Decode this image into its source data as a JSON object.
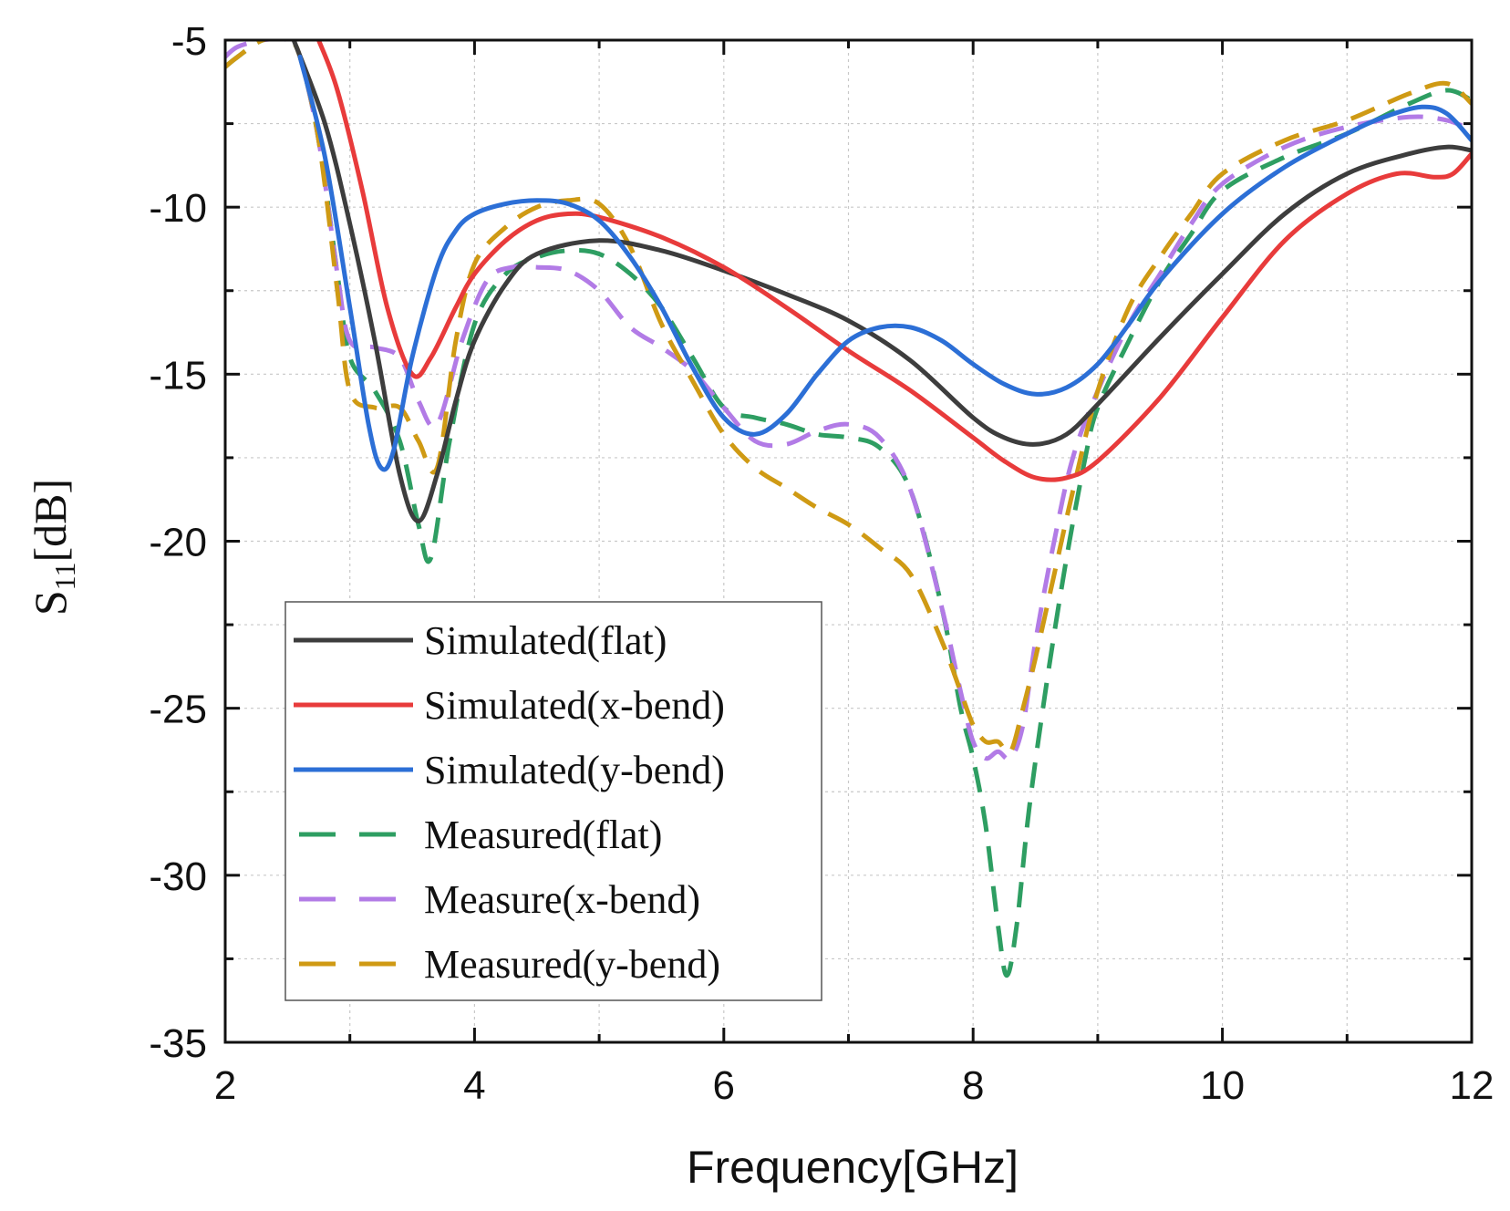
{
  "chart_data": {
    "type": "line",
    "title": "",
    "xlabel": "Frequency[GHz]",
    "ylabel": {
      "main": "S",
      "sub": "11",
      "unit": "[dB]"
    },
    "xlim": [
      2,
      12
    ],
    "ylim": [
      -35,
      -5
    ],
    "xticks": [
      2,
      4,
      6,
      8,
      10,
      12
    ],
    "yticks": [
      -5,
      -10,
      -15,
      -20,
      -25,
      -30,
      -35
    ],
    "grid": true,
    "legend_position": "lower-left",
    "series": [
      {
        "name": "Simulated(flat)",
        "color": "#3d3d3d",
        "style": "solid",
        "x": [
          2.55,
          2.8,
          3.0,
          3.2,
          3.4,
          3.55,
          3.7,
          3.85,
          4.0,
          4.25,
          4.5,
          5.0,
          5.5,
          6.0,
          6.5,
          7.0,
          7.5,
          8.0,
          8.25,
          8.5,
          8.75,
          9.0,
          9.5,
          10.0,
          10.5,
          11.0,
          11.5,
          11.8,
          12.0
        ],
        "y": [
          -5.0,
          -7.5,
          -10.5,
          -14.0,
          -18.0,
          -19.4,
          -18.0,
          -15.8,
          -14.0,
          -12.3,
          -11.4,
          -11.0,
          -11.3,
          -11.9,
          -12.6,
          -13.4,
          -14.6,
          -16.3,
          -16.9,
          -17.1,
          -16.8,
          -15.9,
          -13.9,
          -12.0,
          -10.2,
          -9.0,
          -8.4,
          -8.2,
          -8.3
        ]
      },
      {
        "name": "Simulated(x-bend)",
        "color": "#e83b3b",
        "style": "solid",
        "x": [
          2.75,
          2.9,
          3.1,
          3.3,
          3.5,
          3.65,
          3.85,
          4.0,
          4.25,
          4.5,
          4.75,
          5.0,
          5.5,
          6.0,
          6.5,
          7.0,
          7.5,
          8.0,
          8.25,
          8.5,
          8.75,
          9.0,
          9.5,
          10.0,
          10.5,
          11.0,
          11.4,
          11.7,
          11.85,
          12.0
        ],
        "y": [
          -5.0,
          -6.5,
          -9.5,
          -13.0,
          -15.0,
          -14.5,
          -13.0,
          -12.0,
          -11.0,
          -10.4,
          -10.2,
          -10.3,
          -10.9,
          -11.8,
          -13.0,
          -14.3,
          -15.5,
          -16.9,
          -17.6,
          -18.1,
          -18.1,
          -17.6,
          -15.7,
          -13.3,
          -11.0,
          -9.6,
          -9.0,
          -9.1,
          -9.0,
          -8.4
        ]
      },
      {
        "name": "Simulated(y-bend)",
        "color": "#2c6fd6",
        "style": "solid",
        "x": [
          2.6,
          2.8,
          3.0,
          3.15,
          3.25,
          3.35,
          3.5,
          3.7,
          3.85,
          4.0,
          4.25,
          4.5,
          4.75,
          5.0,
          5.25,
          5.5,
          5.75,
          6.0,
          6.25,
          6.5,
          6.75,
          7.0,
          7.25,
          7.5,
          7.75,
          8.0,
          8.25,
          8.5,
          8.75,
          9.0,
          9.25,
          9.5,
          10.0,
          10.5,
          11.0,
          11.3,
          11.6,
          11.8,
          12.0
        ],
        "y": [
          -5.5,
          -8.5,
          -13.0,
          -16.5,
          -17.8,
          -17.3,
          -14.5,
          -11.8,
          -10.7,
          -10.2,
          -9.9,
          -9.8,
          -9.9,
          -10.4,
          -11.5,
          -13.0,
          -14.8,
          -16.3,
          -16.8,
          -16.2,
          -15.0,
          -14.0,
          -13.6,
          -13.6,
          -14.0,
          -14.7,
          -15.3,
          -15.6,
          -15.4,
          -14.7,
          -13.5,
          -12.2,
          -10.2,
          -8.8,
          -7.8,
          -7.3,
          -7.0,
          -7.2,
          -8.0
        ]
      },
      {
        "name": "Measured(flat)",
        "color": "#2e9e62",
        "style": "dashed",
        "x": [
          2.0,
          2.1,
          2.3,
          2.5,
          2.6,
          2.75,
          2.9,
          3.0,
          3.2,
          3.4,
          3.55,
          3.65,
          3.8,
          4.0,
          4.25,
          4.5,
          4.75,
          5.0,
          5.25,
          5.5,
          5.75,
          6.0,
          6.25,
          6.5,
          6.75,
          7.0,
          7.25,
          7.5,
          7.75,
          7.9,
          8.0,
          8.1,
          8.2,
          8.27,
          8.35,
          8.45,
          8.6,
          8.75,
          8.9,
          9.0,
          9.25,
          9.5,
          9.75,
          10.0,
          10.5,
          11.0,
          11.5,
          11.8,
          12.0
        ],
        "y": [
          -5.8,
          -5.5,
          -5.0,
          -5.0,
          -5.5,
          -8.0,
          -12.0,
          -14.5,
          -15.5,
          -17.0,
          -19.5,
          -20.5,
          -17.0,
          -13.5,
          -12.0,
          -11.5,
          -11.3,
          -11.4,
          -12.0,
          -13.0,
          -14.5,
          -16.0,
          -16.3,
          -16.5,
          -16.8,
          -16.9,
          -17.2,
          -18.5,
          -22.0,
          -25.0,
          -26.5,
          -28.5,
          -31.5,
          -33.0,
          -31.5,
          -28.0,
          -24.0,
          -20.5,
          -17.5,
          -16.0,
          -14.0,
          -12.2,
          -10.8,
          -9.5,
          -8.5,
          -7.8,
          -6.9,
          -6.5,
          -6.8
        ]
      },
      {
        "name": "Measure(x-bend)",
        "color": "#b27be6",
        "style": "dashed",
        "x": [
          2.0,
          2.1,
          2.3,
          2.5,
          2.6,
          2.75,
          2.9,
          3.0,
          3.2,
          3.4,
          3.55,
          3.7,
          3.9,
          4.1,
          4.3,
          4.5,
          4.75,
          5.0,
          5.25,
          5.5,
          5.75,
          6.0,
          6.25,
          6.5,
          6.75,
          7.0,
          7.25,
          7.5,
          7.75,
          7.9,
          8.0,
          8.1,
          8.2,
          8.3,
          8.4,
          8.5,
          8.65,
          8.8,
          9.0,
          9.25,
          9.5,
          9.75,
          10.0,
          10.5,
          11.0,
          11.5,
          11.8,
          12.0
        ],
        "y": [
          -5.5,
          -5.2,
          -5.0,
          -5.0,
          -5.5,
          -8.0,
          -12.0,
          -14.0,
          -14.2,
          -14.5,
          -15.8,
          -16.5,
          -14.0,
          -12.2,
          -11.8,
          -11.8,
          -11.9,
          -12.5,
          -13.6,
          -14.2,
          -14.9,
          -16.0,
          -17.0,
          -17.1,
          -16.7,
          -16.5,
          -16.9,
          -18.5,
          -22.0,
          -24.5,
          -26.0,
          -26.5,
          -26.3,
          -26.5,
          -25.5,
          -23.0,
          -20.0,
          -17.5,
          -15.5,
          -13.5,
          -12.0,
          -10.5,
          -9.3,
          -8.2,
          -7.6,
          -7.3,
          -7.4,
          -7.7
        ]
      },
      {
        "name": "Measured(y-bend)",
        "color": "#cf9a14",
        "style": "dashed",
        "x": [
          2.0,
          2.1,
          2.3,
          2.5,
          2.6,
          2.75,
          2.9,
          3.0,
          3.2,
          3.4,
          3.55,
          3.7,
          3.85,
          4.0,
          4.25,
          4.5,
          4.75,
          5.0,
          5.25,
          5.5,
          5.75,
          6.0,
          6.25,
          6.5,
          6.75,
          7.0,
          7.25,
          7.5,
          7.75,
          7.9,
          8.0,
          8.1,
          8.2,
          8.3,
          8.4,
          8.5,
          8.65,
          8.8,
          9.0,
          9.25,
          9.5,
          9.75,
          10.0,
          10.5,
          11.0,
          11.5,
          11.8,
          12.0
        ],
        "y": [
          -5.8,
          -5.5,
          -5.0,
          -5.0,
          -5.5,
          -8.0,
          -12.5,
          -15.5,
          -16.0,
          -16.0,
          -17.0,
          -17.8,
          -14.0,
          -11.7,
          -10.6,
          -10.0,
          -9.8,
          -9.9,
          -11.2,
          -13.5,
          -15.2,
          -16.8,
          -17.8,
          -18.4,
          -19.0,
          -19.5,
          -20.2,
          -21.0,
          -23.0,
          -24.5,
          -25.5,
          -26.0,
          -26.0,
          -26.3,
          -25.0,
          -23.5,
          -21.0,
          -18.5,
          -15.5,
          -13.0,
          -11.5,
          -10.2,
          -9.0,
          -8.0,
          -7.4,
          -6.6,
          -6.3,
          -6.9
        ]
      }
    ]
  }
}
